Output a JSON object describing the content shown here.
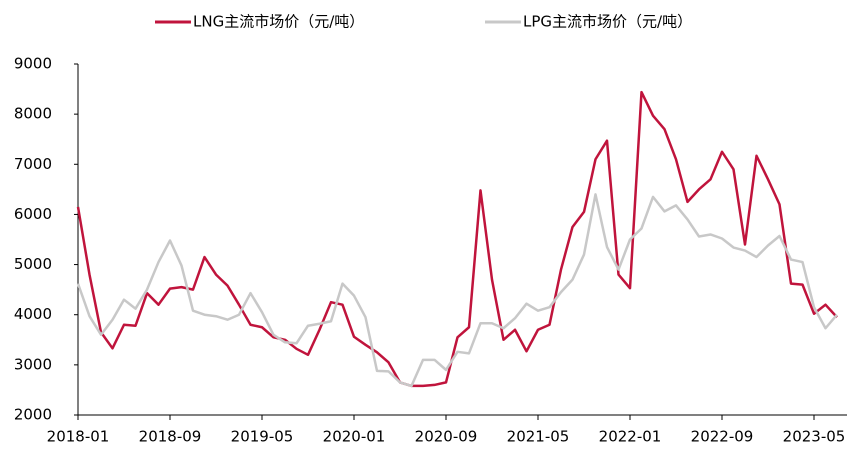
{
  "chart_data": {
    "type": "line",
    "categories": [
      "2018-01",
      null,
      null,
      null,
      null,
      null,
      null,
      null,
      "2018-09",
      null,
      null,
      null,
      null,
      null,
      null,
      null,
      "2019-05",
      null,
      null,
      null,
      null,
      null,
      null,
      null,
      "2020-01",
      null,
      null,
      null,
      null,
      null,
      null,
      null,
      "2020-09",
      null,
      null,
      null,
      null,
      null,
      null,
      null,
      "2021-05",
      null,
      null,
      null,
      null,
      null,
      null,
      null,
      "2022-01",
      null,
      null,
      null,
      null,
      null,
      null,
      null,
      "2022-09",
      null,
      null,
      null,
      null,
      null,
      null,
      null,
      "2023-05",
      null,
      null
    ],
    "series": [
      {
        "name": "LNG主流市场价（元/吨）",
        "color": "#c0143c",
        "values": [
          6150,
          4800,
          3650,
          3330,
          3800,
          3780,
          4430,
          4200,
          4520,
          4550,
          4500,
          5150,
          4800,
          4580,
          4200,
          3800,
          3750,
          3550,
          3500,
          3320,
          3200,
          3700,
          4250,
          4200,
          3560,
          3400,
          3250,
          3050,
          2650,
          2580,
          2580,
          2600,
          2650,
          3550,
          3750,
          6480,
          4700,
          3500,
          3700,
          3270,
          3700,
          3800,
          4900,
          5750,
          6050,
          7100,
          7470,
          4800,
          4530,
          8440,
          7970,
          7700,
          7100,
          6250,
          6500,
          6700,
          7250,
          6900,
          5400,
          7170,
          6700,
          6200,
          4620,
          4600,
          4020,
          4200,
          3950
        ]
      },
      {
        "name": "LPG主流市场价（元/吨）",
        "color": "#c8c8c8",
        "values": [
          4620,
          3970,
          3600,
          3900,
          4300,
          4120,
          4500,
          5050,
          5480,
          4980,
          4080,
          4000,
          3970,
          3900,
          4000,
          4430,
          4050,
          3600,
          3450,
          3430,
          3780,
          3820,
          3870,
          4620,
          4380,
          3950,
          2880,
          2870,
          2650,
          2580,
          3100,
          3100,
          2900,
          3260,
          3230,
          3830,
          3830,
          3730,
          3930,
          4220,
          4080,
          4150,
          4450,
          4700,
          5200,
          6400,
          5350,
          4900,
          5500,
          5720,
          6350,
          6060,
          6180,
          5900,
          5560,
          5600,
          5520,
          5340,
          5280,
          5150,
          5380,
          5570,
          5100,
          5050,
          4150,
          3730,
          4000
        ]
      }
    ],
    "ylim": [
      2000,
      9000
    ],
    "yticks": [
      2000,
      3000,
      4000,
      5000,
      6000,
      7000,
      8000,
      9000
    ],
    "grid": false,
    "legend": "top"
  }
}
